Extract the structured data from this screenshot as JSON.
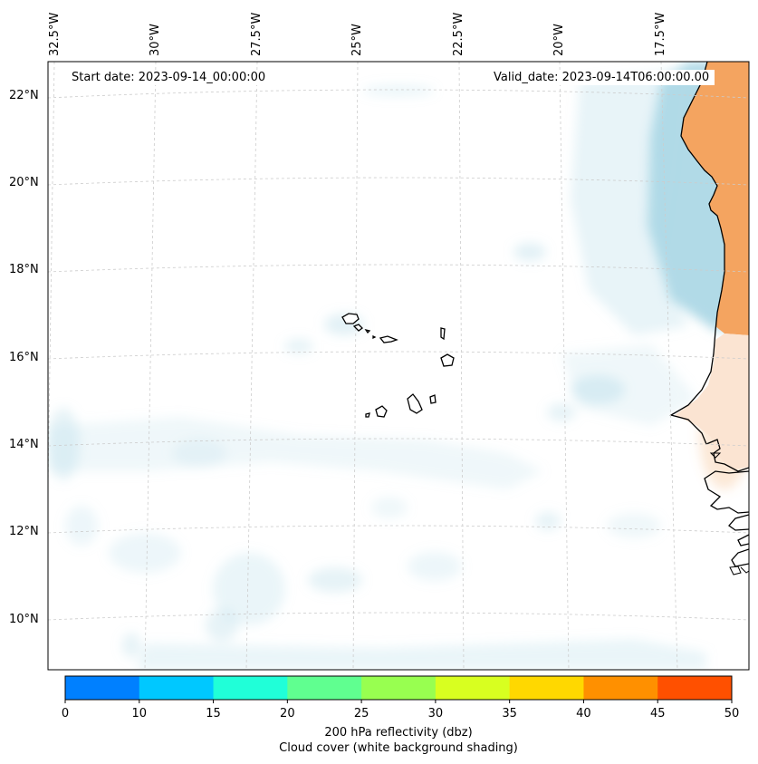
{
  "header": {
    "start_date": "Start date: 2023-09-14_00:00:00",
    "valid_date": "Valid_date: 2023-09-14T06:00:00.00"
  },
  "map": {
    "longitude_labels": [
      "32.5°W",
      "30°W",
      "27.5°W",
      "25°W",
      "22.5°W",
      "20°W",
      "17.5°W"
    ],
    "latitude_labels": [
      "22°N",
      "20°N",
      "18°N",
      "16°N",
      "14°N",
      "12°N",
      "10°N"
    ],
    "land_color": "#f4a460",
    "cloud_color": "#add8e6"
  },
  "colorbar": {
    "ticks": [
      "0",
      "10",
      "15",
      "20",
      "25",
      "30",
      "35",
      "40",
      "45",
      "50"
    ],
    "colors": [
      "#0080ff",
      "#00c8ff",
      "#20ffd8",
      "#60ff90",
      "#98ff50",
      "#d8ff20",
      "#ffd800",
      "#ff9000",
      "#ff5000"
    ],
    "title": "200 hPa reflectivity (dbz)",
    "subtitle": "Cloud cover (white background shading)"
  }
}
